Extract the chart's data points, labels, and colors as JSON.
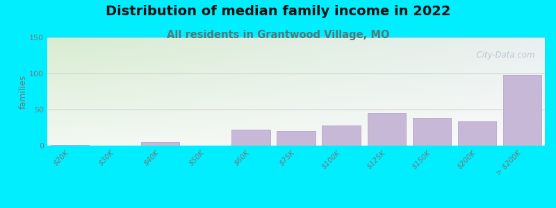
{
  "title": "Distribution of median family income in 2022",
  "subtitle": "All residents in Grantwood Village, MO",
  "categories": [
    "$20K",
    "$30K",
    "$40K",
    "$50K",
    "$60K",
    "$75K",
    "$100K",
    "$125K",
    "$150K",
    "$200K",
    "> $200K"
  ],
  "values": [
    1,
    0,
    5,
    0,
    22,
    20,
    28,
    45,
    38,
    34,
    98
  ],
  "bar_color": "#c8b8d8",
  "bar_edge_color": "#b5a4cc",
  "ylabel": "families",
  "ylim": [
    0,
    150
  ],
  "yticks": [
    0,
    50,
    100,
    150
  ],
  "background_outer": "#00eeff",
  "bg_top_left": "#d8ecd0",
  "bg_top_right": "#e8f0f0",
  "bg_bottom_left": "#f0f8f0",
  "bg_bottom_right": "#f8f8f8",
  "title_fontsize": 14,
  "subtitle_fontsize": 10.5,
  "title_color": "#111111",
  "subtitle_color": "#557777",
  "watermark": "  City-Data.com",
  "watermark_color": "#b0c0c8",
  "grid_color": "#cccccc",
  "tick_color": "#777777",
  "ylabel_color": "#777777"
}
